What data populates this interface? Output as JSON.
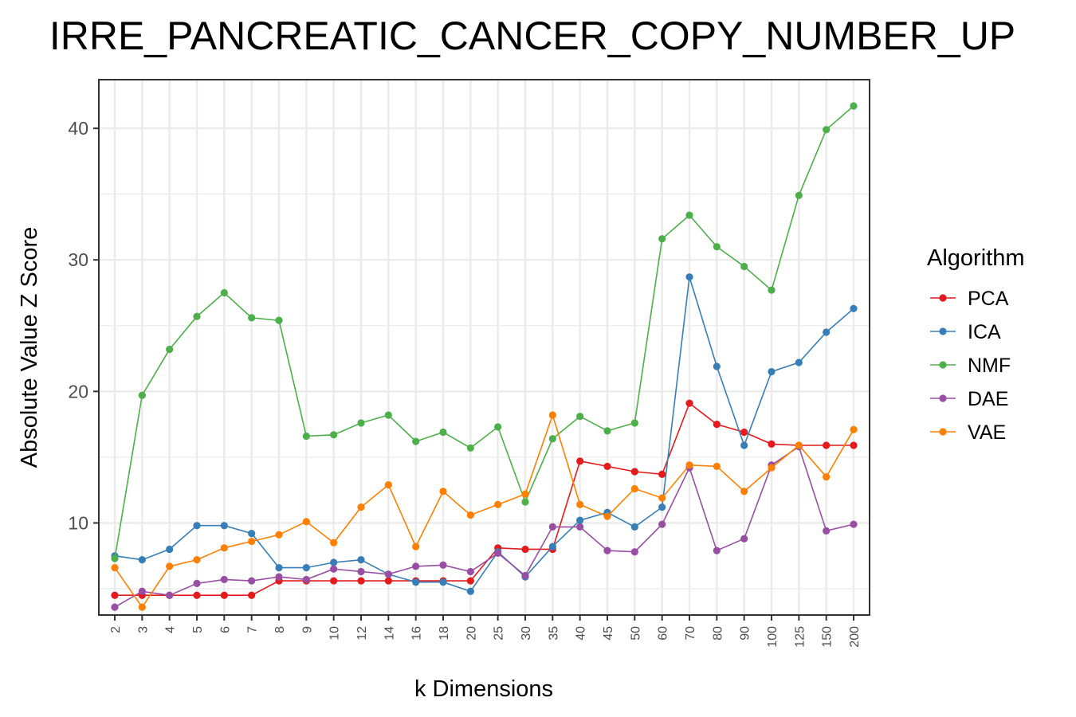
{
  "chart_data": {
    "type": "line",
    "title": "IRRE_PANCREATIC_CANCER_COPY_NUMBER_UP",
    "xlabel": "k Dimensions",
    "ylabel": "Absolute Value Z Score",
    "categories": [
      "2",
      "3",
      "4",
      "5",
      "6",
      "7",
      "8",
      "9",
      "10",
      "12",
      "14",
      "16",
      "18",
      "20",
      "25",
      "30",
      "35",
      "40",
      "45",
      "50",
      "60",
      "70",
      "80",
      "90",
      "100",
      "125",
      "150",
      "200"
    ],
    "yticks": [
      10,
      20,
      30,
      40
    ],
    "ylim": [
      3.0,
      43.7
    ],
    "grid": true,
    "legend": {
      "title": "Algorithm",
      "position": "right"
    },
    "series": [
      {
        "name": "PCA",
        "color": "#e41a1c",
        "values": [
          4.5,
          4.5,
          4.5,
          4.5,
          4.5,
          4.5,
          5.6,
          5.6,
          5.6,
          5.6,
          5.6,
          5.6,
          5.6,
          5.6,
          8.1,
          8.0,
          8.0,
          14.7,
          14.3,
          13.9,
          13.7,
          19.1,
          17.5,
          16.9,
          16.0,
          15.9,
          15.9,
          15.9
        ]
      },
      {
        "name": "ICA",
        "color": "#377eb8",
        "values": [
          7.5,
          7.2,
          8.0,
          9.8,
          9.8,
          9.2,
          6.6,
          6.6,
          7.0,
          7.2,
          6.1,
          5.5,
          5.5,
          4.8,
          7.8,
          5.9,
          8.2,
          10.2,
          10.8,
          9.7,
          11.2,
          28.7,
          21.9,
          15.9,
          21.5,
          22.2,
          24.5,
          26.3
        ]
      },
      {
        "name": "NMF",
        "color": "#4daf4a",
        "values": [
          7.3,
          19.7,
          23.2,
          25.7,
          27.5,
          25.6,
          25.4,
          16.6,
          16.7,
          17.6,
          18.2,
          16.2,
          16.9,
          15.7,
          17.3,
          11.6,
          16.4,
          18.1,
          17.0,
          17.6,
          31.6,
          33.4,
          31.0,
          29.5,
          27.7,
          34.9,
          39.9,
          41.7
        ]
      },
      {
        "name": "DAE",
        "color": "#984ea3",
        "values": [
          3.6,
          4.8,
          4.5,
          5.4,
          5.7,
          5.6,
          5.9,
          5.7,
          6.5,
          6.3,
          6.1,
          6.7,
          6.8,
          6.3,
          7.7,
          6.0,
          9.7,
          9.7,
          7.9,
          7.8,
          9.9,
          14.2,
          7.9,
          8.8,
          14.4,
          15.8,
          9.4,
          9.9
        ]
      },
      {
        "name": "VAE",
        "color": "#ff7f00",
        "values": [
          6.6,
          3.6,
          6.7,
          7.2,
          8.1,
          8.6,
          9.1,
          10.1,
          8.5,
          11.2,
          12.9,
          8.2,
          12.4,
          10.6,
          11.4,
          12.2,
          18.2,
          11.4,
          10.5,
          12.6,
          11.9,
          14.4,
          14.3,
          12.4,
          14.2,
          15.9,
          13.5,
          17.1
        ]
      }
    ]
  }
}
